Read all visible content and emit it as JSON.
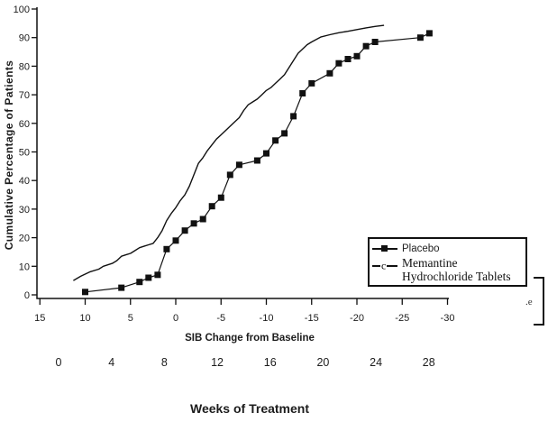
{
  "figure": {
    "y_axis_title": "Cumulative Percentage of Patients",
    "x_axis_title": "SIB Change from Baseline",
    "weeks_axis_title": "Weeks of Treatment",
    "legend": {
      "memantine_marker_glyph": "c"
    },
    "artifact_text": ".e",
    "colors": {
      "ink": "#111111",
      "background": "#ffffff"
    }
  },
  "chart_data": {
    "type": "line",
    "title": "",
    "xlabel": "SIB Change from Baseline",
    "ylabel": "Cumulative Percentage of Patients",
    "x_axis": {
      "label": "SIB Change from Baseline",
      "ticks": [
        15,
        10,
        5,
        0,
        -5,
        -10,
        -15,
        -20,
        -25,
        -30
      ],
      "reversed": true,
      "range": [
        15,
        -30
      ]
    },
    "y_axis": {
      "ticks": [
        0,
        10,
        20,
        30,
        40,
        50,
        60,
        70,
        80,
        90,
        100
      ],
      "range": [
        0,
        100
      ]
    },
    "weeks_axis": {
      "label": "Weeks of Treatment",
      "ticks": [
        0,
        4,
        8,
        12,
        16,
        20,
        24,
        28
      ]
    },
    "grid": false,
    "legend_position": "inside-right-bottom",
    "series": [
      {
        "name": "Placebo",
        "marker": "filled-square",
        "points": [
          [
            10,
            1
          ],
          [
            6,
            2.5
          ],
          [
            4,
            4.5
          ],
          [
            3,
            6
          ],
          [
            2,
            7
          ],
          [
            1,
            16
          ],
          [
            0,
            19
          ],
          [
            -1,
            22.5
          ],
          [
            -2,
            25
          ],
          [
            -3,
            26.5
          ],
          [
            -4,
            31
          ],
          [
            -5,
            34
          ],
          [
            -6,
            42
          ],
          [
            -7,
            45.5
          ],
          [
            -9,
            47
          ],
          [
            -10,
            49.5
          ],
          [
            -11,
            54
          ],
          [
            -12,
            56.5
          ],
          [
            -13,
            62.5
          ],
          [
            -14,
            70.5
          ],
          [
            -15,
            74
          ],
          [
            -17,
            77.5
          ],
          [
            -18,
            81
          ],
          [
            -19,
            82.5
          ],
          [
            -20,
            83.5
          ],
          [
            -21,
            87
          ],
          [
            -22,
            88.5
          ],
          [
            -27,
            90
          ],
          [
            -28,
            91.5
          ]
        ]
      },
      {
        "name": "Memantine Hydrochloride Tablets",
        "marker": "line",
        "points": [
          [
            11.3,
            5
          ],
          [
            10.5,
            6.5
          ],
          [
            9.5,
            8
          ],
          [
            8.5,
            9
          ],
          [
            8,
            10
          ],
          [
            7,
            11
          ],
          [
            6.5,
            12
          ],
          [
            6,
            13.5
          ],
          [
            5.5,
            14
          ],
          [
            5,
            14.5
          ],
          [
            4.5,
            15.5
          ],
          [
            4,
            16.5
          ],
          [
            3.5,
            17
          ],
          [
            3,
            17.5
          ],
          [
            2.5,
            18
          ],
          [
            2,
            20
          ],
          [
            1.5,
            22.5
          ],
          [
            1,
            26
          ],
          [
            0.5,
            28.5
          ],
          [
            0,
            30.5
          ],
          [
            -0.5,
            33
          ],
          [
            -1,
            35
          ],
          [
            -1.5,
            38
          ],
          [
            -2,
            42
          ],
          [
            -2.5,
            46
          ],
          [
            -3,
            48
          ],
          [
            -3.5,
            50.5
          ],
          [
            -4,
            52.5
          ],
          [
            -4.5,
            54.5
          ],
          [
            -5,
            56
          ],
          [
            -5.5,
            57.5
          ],
          [
            -6,
            59
          ],
          [
            -6.5,
            60.5
          ],
          [
            -7,
            62
          ],
          [
            -7.5,
            64.5
          ],
          [
            -8,
            66.5
          ],
          [
            -8.5,
            67.5
          ],
          [
            -9,
            68.5
          ],
          [
            -9.5,
            70
          ],
          [
            -10,
            71.5
          ],
          [
            -10.5,
            72.5
          ],
          [
            -11,
            74
          ],
          [
            -11.5,
            75.5
          ],
          [
            -12,
            77
          ],
          [
            -12.5,
            79.5
          ],
          [
            -13,
            82
          ],
          [
            -13.5,
            84.5
          ],
          [
            -14,
            86
          ],
          [
            -14.5,
            87.5
          ],
          [
            -15,
            88.5
          ],
          [
            -16,
            90.2
          ],
          [
            -17,
            91
          ],
          [
            -18,
            91.7
          ],
          [
            -19,
            92.2
          ],
          [
            -20,
            92.8
          ],
          [
            -21,
            93.4
          ],
          [
            -22,
            93.9
          ],
          [
            -23,
            94.3
          ]
        ]
      }
    ]
  }
}
